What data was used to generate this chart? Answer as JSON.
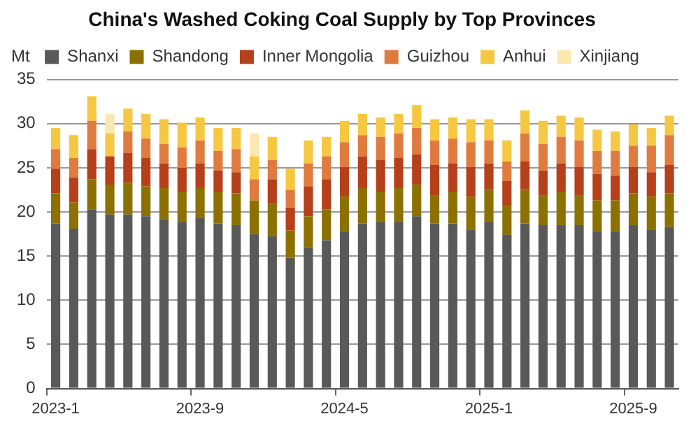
{
  "chart_data": {
    "type": "bar",
    "title": "China's Washed Coking Coal Supply by Top Provinces",
    "ylabel": "Mt",
    "categories": [
      "2023-1",
      null,
      null,
      null,
      null,
      null,
      null,
      null,
      "2023-9",
      null,
      null,
      null,
      null,
      null,
      null,
      null,
      "2024-5",
      null,
      null,
      null,
      null,
      null,
      null,
      null,
      "2025-1",
      null,
      null,
      null,
      null,
      null,
      null,
      null,
      "2025-9",
      null,
      null
    ],
    "stacked": true,
    "ylim": [
      0,
      35
    ],
    "yticks": [
      0,
      5,
      10,
      15,
      20,
      25,
      30,
      35
    ],
    "grid": "y",
    "legend": "top",
    "series": [
      {
        "name": "Shanxi",
        "color": "#595959",
        "values": [
          18.7,
          18.1,
          20.3,
          19.7,
          19.7,
          19.5,
          19.2,
          18.9,
          19.3,
          18.7,
          18.5,
          17.5,
          17.3,
          14.8,
          16.0,
          16.8,
          17.8,
          18.7,
          18.9,
          18.9,
          19.5,
          18.7,
          18.7,
          18.0,
          18.9,
          17.4,
          18.7,
          18.5,
          18.5,
          18.5,
          17.8,
          17.8,
          18.5,
          18.0,
          18.3
        ]
      },
      {
        "name": "Shandong",
        "color": "#8c7000",
        "values": [
          3.4,
          3.0,
          3.4,
          3.4,
          3.6,
          3.4,
          3.5,
          3.4,
          3.4,
          3.6,
          3.6,
          3.8,
          3.6,
          3.1,
          3.5,
          3.5,
          3.9,
          4.0,
          3.4,
          3.8,
          3.6,
          3.2,
          3.6,
          3.7,
          3.6,
          3.3,
          3.8,
          3.4,
          3.8,
          3.4,
          3.5,
          3.5,
          3.6,
          3.7,
          3.8
        ]
      },
      {
        "name": "Inner Mongolia",
        "color": "#b5401a",
        "values": [
          2.8,
          2.8,
          3.4,
          3.2,
          3.4,
          3.2,
          2.8,
          2.7,
          2.8,
          2.4,
          2.4,
          null,
          2.8,
          2.6,
          3.4,
          3.4,
          3.4,
          3.6,
          3.6,
          3.4,
          3.4,
          3.4,
          3.2,
          3.4,
          3.0,
          2.8,
          3.2,
          2.8,
          3.2,
          3.2,
          3.0,
          2.8,
          3.0,
          2.8,
          3.2
        ]
      },
      {
        "name": "Guizhou",
        "color": "#e07b3f",
        "values": [
          2.2,
          2.2,
          3.2,
          null,
          2.4,
          2.2,
          2.2,
          2.3,
          2.6,
          2.2,
          2.6,
          2.4,
          2.2,
          2.0,
          2.6,
          2.6,
          2.8,
          2.4,
          2.6,
          2.8,
          3.0,
          2.8,
          2.8,
          2.8,
          2.6,
          2.2,
          3.2,
          3.0,
          3.0,
          3.0,
          2.6,
          2.8,
          2.4,
          3.0,
          3.4
        ]
      },
      {
        "name": "Anhui",
        "color": "#f6c842",
        "values": [
          2.4,
          2.6,
          2.8,
          2.6,
          2.6,
          2.8,
          2.8,
          2.8,
          2.6,
          2.6,
          2.4,
          2.6,
          2.6,
          2.4,
          2.6,
          2.2,
          2.4,
          2.4,
          2.2,
          2.2,
          2.6,
          2.4,
          2.4,
          2.6,
          2.4,
          2.4,
          2.6,
          2.6,
          2.4,
          2.6,
          2.4,
          2.2,
          2.4,
          2.0,
          2.2
        ]
      },
      {
        "name": "Xinjiang",
        "color": "#fae8b0",
        "values": [
          null,
          null,
          null,
          2.2,
          null,
          null,
          null,
          null,
          null,
          null,
          null,
          2.6,
          null,
          null,
          null,
          null,
          null,
          null,
          null,
          null,
          null,
          null,
          null,
          null,
          null,
          null,
          null,
          null,
          null,
          null,
          null,
          null,
          null,
          null,
          null
        ]
      }
    ]
  }
}
